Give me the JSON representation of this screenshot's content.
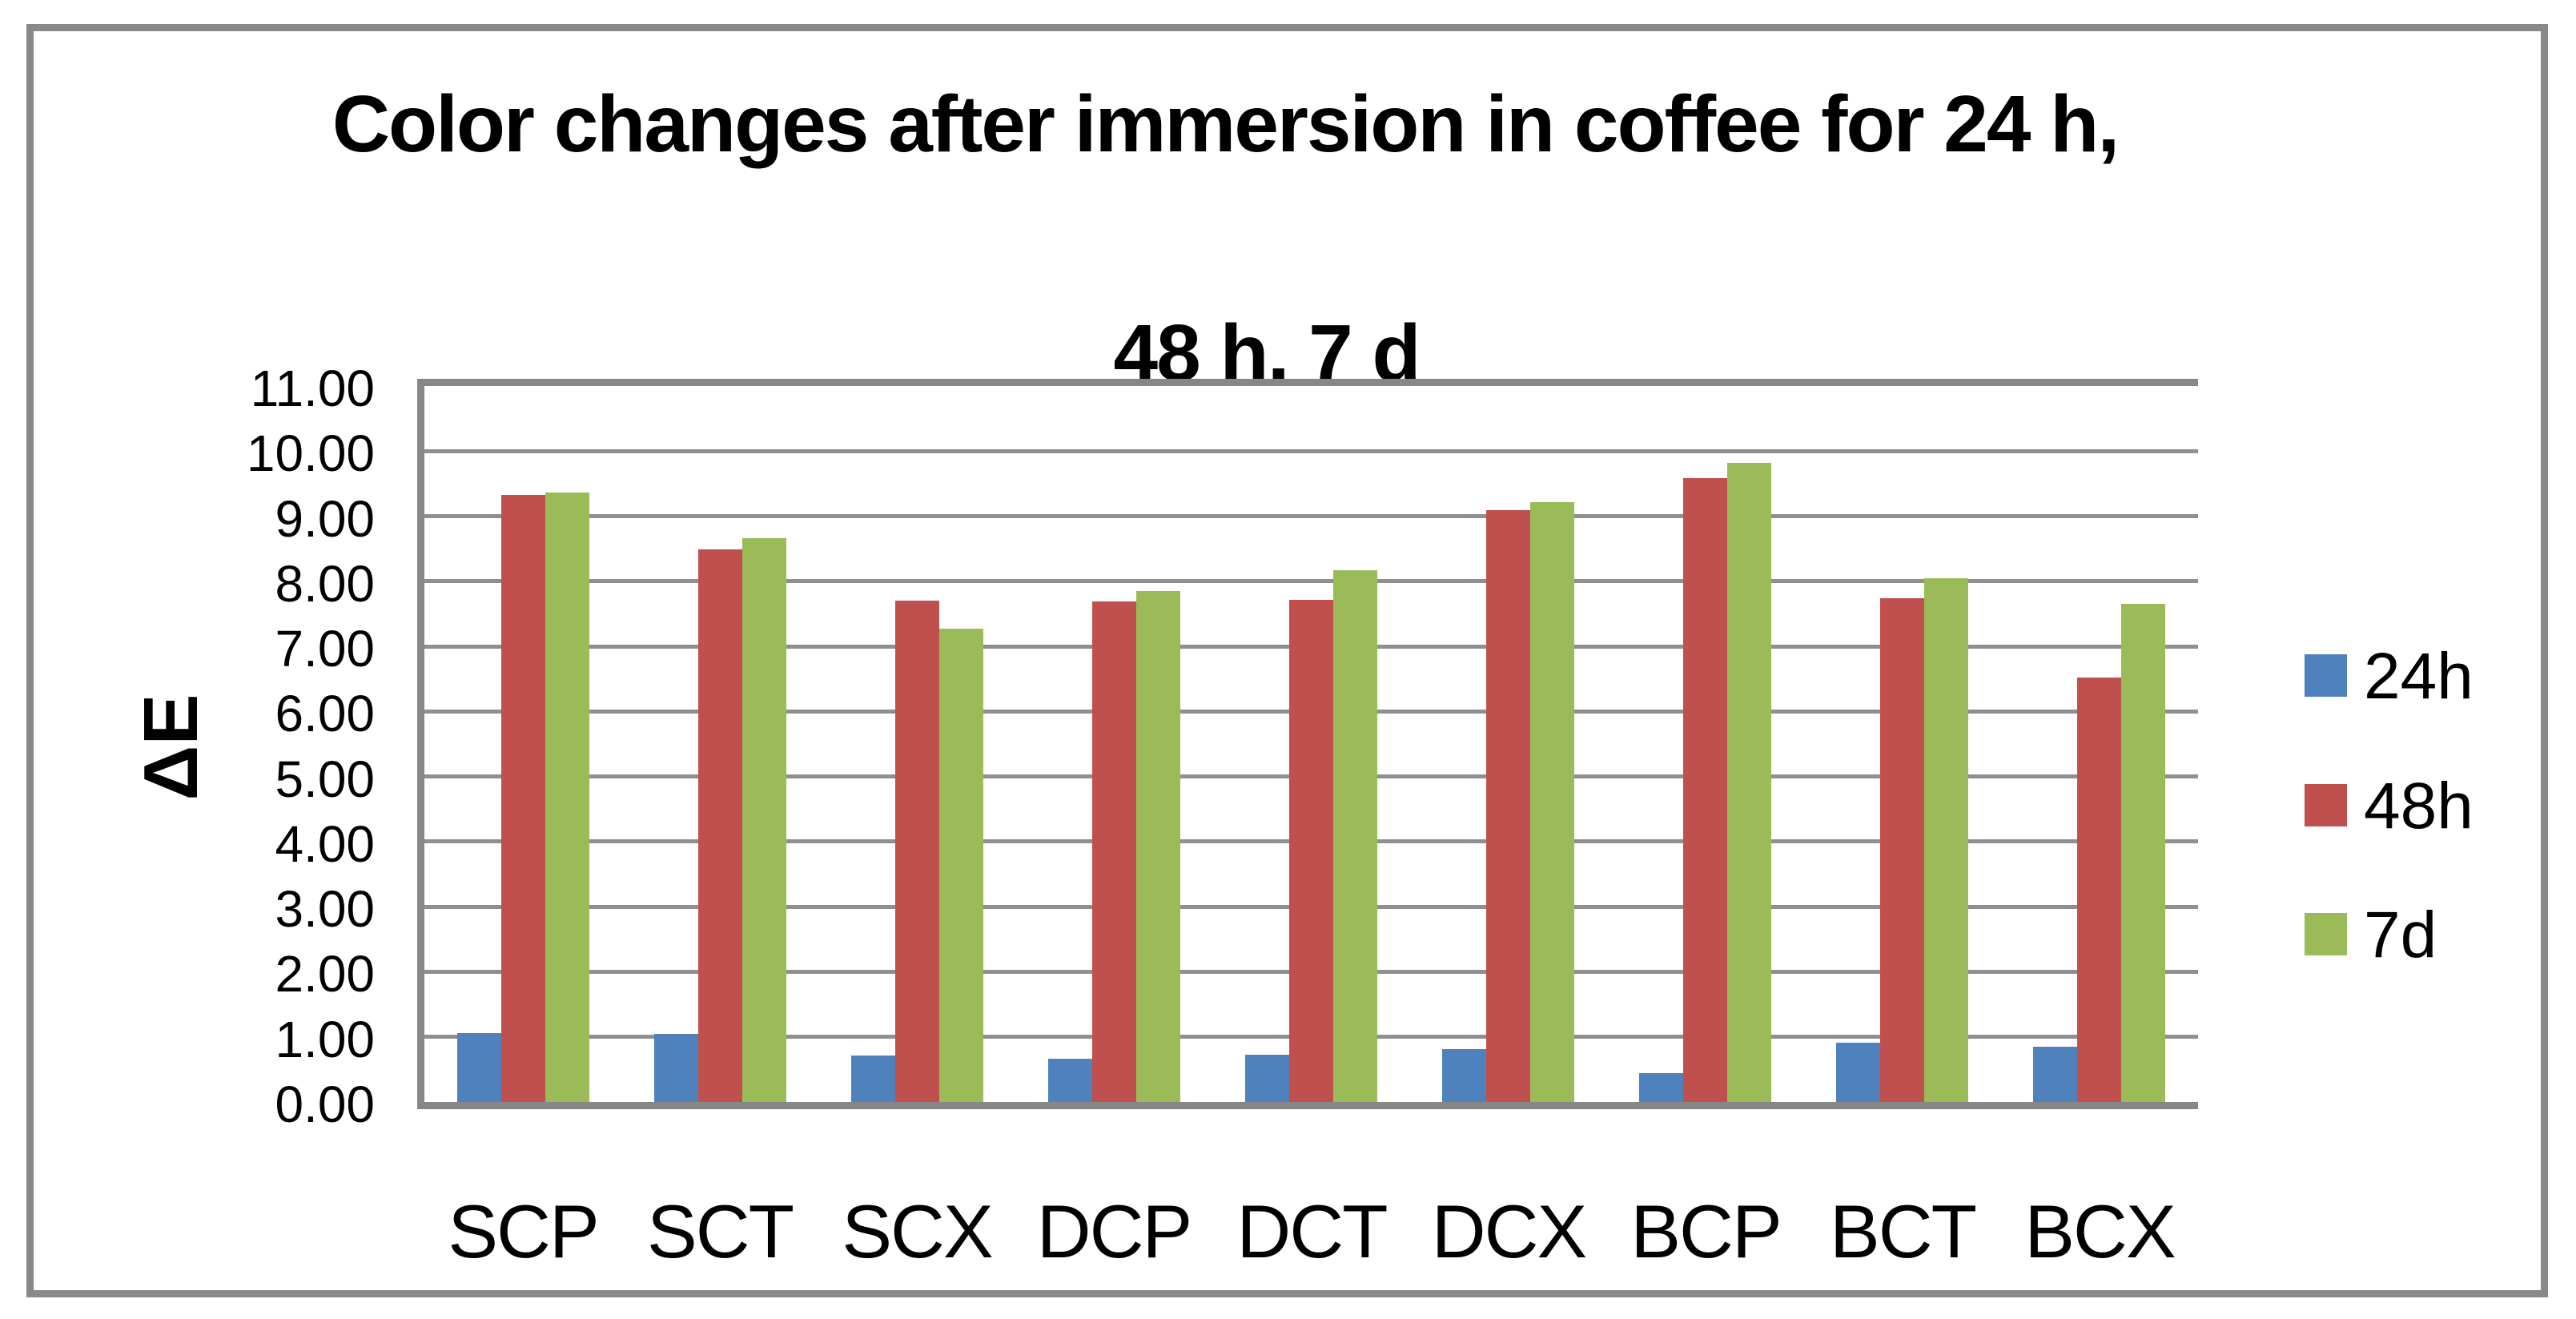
{
  "figure": {
    "title_lines": [
      "Color changes after immersion in coffee for 24 h,",
      "48 h, 7 d"
    ]
  },
  "chart_data": {
    "type": "bar",
    "title": "Color changes after immersion in coffee for 24 h, 48 h, 7 d",
    "xlabel": "",
    "ylabel": "ΔE",
    "ylim": [
      0,
      11
    ],
    "y_tick_step": 1.0,
    "y_tick_labels": [
      "11.00",
      "10.00",
      "9.00",
      "8.00",
      "7.00",
      "6.00",
      "5.00",
      "4.00",
      "3.00",
      "2.00",
      "1.00",
      "0.00"
    ],
    "grid": true,
    "legend_position": "right",
    "categories": [
      "SCP",
      "SCT",
      "SCX",
      "DCP",
      "DCT",
      "DCX",
      "BCP",
      "BCT",
      "BCX"
    ],
    "series": [
      {
        "name": "24h",
        "color": "#4F81BD",
        "values": [
          1.06,
          1.05,
          0.71,
          0.66,
          0.72,
          0.81,
          0.44,
          0.91,
          0.85
        ]
      },
      {
        "name": "48h",
        "color": "#C0504D",
        "values": [
          9.33,
          8.49,
          7.7,
          7.69,
          7.72,
          9.09,
          9.58,
          7.74,
          6.52
        ]
      },
      {
        "name": "7d",
        "color": "#9BBB59",
        "values": [
          9.36,
          8.66,
          7.27,
          7.85,
          8.17,
          9.22,
          9.82,
          8.05,
          7.65
        ]
      }
    ],
    "colors": {
      "series_24h": "#4F81BD",
      "series_48h": "#C0504D",
      "series_7d": "#9BBB59",
      "gridline": "#8F8F8F",
      "axis_frame": "#878787",
      "outer_border": "#898989",
      "text": "#000000",
      "background": "#FFFFFF"
    }
  }
}
